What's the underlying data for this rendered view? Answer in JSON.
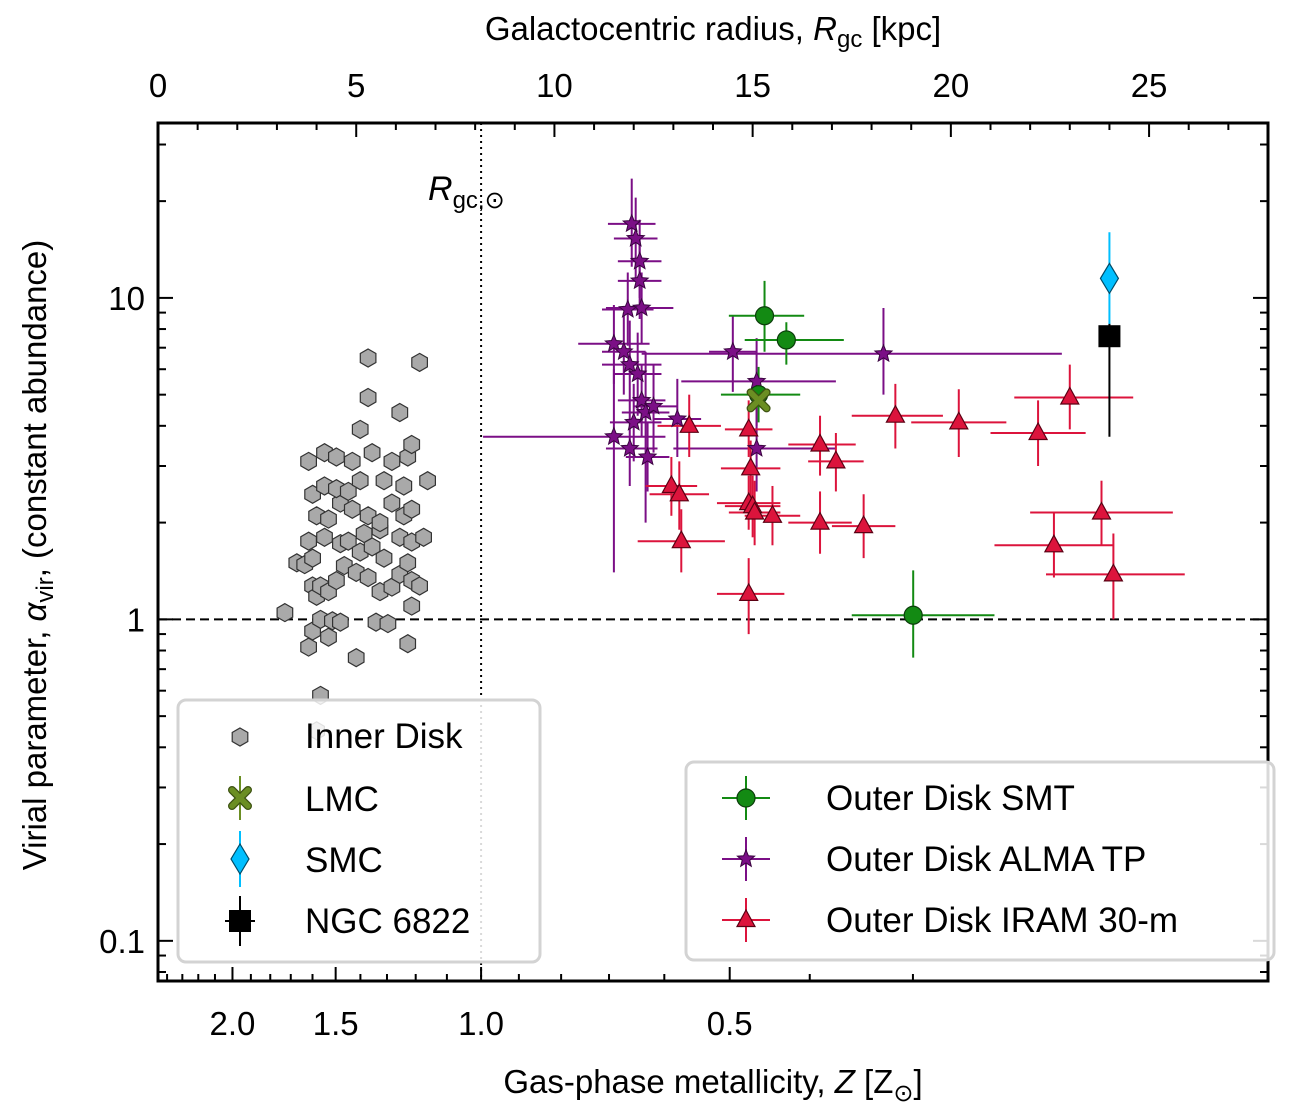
{
  "chart_data": {
    "type": "scatter",
    "xlabel_bottom": "Gas-phase metallicity, ",
    "xlabel_bottom_var": "Z",
    "xlabel_bottom_unit_open": " [Z",
    "xlabel_bottom_unit_sub": "⊙",
    "xlabel_bottom_unit_close": "]",
    "xlabel_top": "Galactocentric radius, ",
    "xlabel_top_var": "R",
    "xlabel_top_sub": "gc",
    "xlabel_top_unit": " [kpc]",
    "ylabel": "Virial parameter, ",
    "ylabel_var": "α",
    "ylabel_sub": "vir",
    "ylabel_tail": ", (constant abundance)",
    "annotation_var": "R",
    "annotation_sub": "gc,⊙",
    "x_top_range_kpc": [
      0,
      28
    ],
    "x_top_ticks": [
      "0",
      "5",
      "10",
      "15",
      "20",
      "25"
    ],
    "x_bottom_ticks": [
      "2.0",
      "1.5",
      "1.0",
      "0.5"
    ],
    "y_scale": "log",
    "y_range": [
      0.075,
      35
    ],
    "y_ticks": [
      "0.1",
      "1",
      "10"
    ],
    "solar_radius_kpc": 8.15,
    "reference_line_y": 1,
    "colors": {
      "inner": "#a9a9a9",
      "lmc": "#6b8e23",
      "smc": "#00bfff",
      "ngc": "#000000",
      "smt": "#138a13",
      "alma": "#7b0f86",
      "iram": "#dc143c"
    },
    "legend_left": [
      {
        "key": "inner",
        "label": "Inner Disk",
        "marker": "hexagon"
      },
      {
        "key": "lmc",
        "label": "LMC",
        "marker": "x"
      },
      {
        "key": "smc",
        "label": "SMC",
        "marker": "diamond"
      },
      {
        "key": "ngc",
        "label": "NGC 6822",
        "marker": "square"
      }
    ],
    "legend_right": [
      {
        "key": "smt",
        "label": "Outer Disk SMT",
        "marker": "circle"
      },
      {
        "key": "alma",
        "label": "Outer Disk ALMA TP",
        "marker": "star"
      },
      {
        "key": "iram",
        "label": "Outer Disk IRAM 30-m",
        "marker": "triangle"
      }
    ],
    "inner_disk": [
      [
        3.2,
        1.05
      ],
      [
        3.8,
        0.82
      ],
      [
        3.9,
        0.92
      ],
      [
        4.1,
        1.0
      ],
      [
        4.3,
        0.88
      ],
      [
        4.4,
        0.99
      ],
      [
        4.6,
        0.98
      ],
      [
        5.0,
        0.76
      ],
      [
        5.5,
        0.98
      ],
      [
        6.3,
        0.84
      ],
      [
        3.5,
        1.5
      ],
      [
        3.7,
        1.48
      ],
      [
        3.9,
        1.27
      ],
      [
        4.0,
        1.18
      ],
      [
        4.1,
        1.27
      ],
      [
        4.3,
        1.22
      ],
      [
        4.5,
        1.32
      ],
      [
        4.7,
        1.47
      ],
      [
        5.0,
        1.4
      ],
      [
        5.3,
        1.35
      ],
      [
        5.6,
        1.22
      ],
      [
        5.9,
        1.26
      ],
      [
        6.1,
        1.38
      ],
      [
        6.4,
        1.32
      ],
      [
        6.6,
        1.27
      ],
      [
        6.4,
        1.1
      ],
      [
        6.3,
        1.5
      ],
      [
        3.9,
        1.55
      ],
      [
        3.8,
        1.75
      ],
      [
        4.2,
        1.8
      ],
      [
        4.6,
        1.72
      ],
      [
        4.8,
        1.75
      ],
      [
        5.1,
        1.62
      ],
      [
        5.4,
        1.68
      ],
      [
        5.6,
        1.9
      ],
      [
        6.1,
        1.8
      ],
      [
        6.4,
        1.74
      ],
      [
        6.7,
        1.8
      ],
      [
        4.0,
        2.1
      ],
      [
        4.3,
        2.05
      ],
      [
        4.6,
        2.3
      ],
      [
        4.9,
        2.2
      ],
      [
        5.3,
        2.1
      ],
      [
        5.6,
        2.0
      ],
      [
        5.9,
        2.3
      ],
      [
        6.2,
        2.1
      ],
      [
        6.4,
        2.2
      ],
      [
        3.9,
        2.45
      ],
      [
        4.2,
        2.6
      ],
      [
        4.5,
        2.55
      ],
      [
        4.8,
        2.5
      ],
      [
        5.1,
        2.7
      ],
      [
        5.7,
        2.7
      ],
      [
        6.2,
        2.6
      ],
      [
        6.8,
        2.7
      ],
      [
        3.8,
        3.1
      ],
      [
        4.2,
        3.3
      ],
      [
        4.5,
        3.2
      ],
      [
        4.9,
        3.1
      ],
      [
        5.4,
        3.3
      ],
      [
        5.9,
        3.1
      ],
      [
        6.3,
        3.2
      ],
      [
        6.4,
        3.5
      ],
      [
        5.1,
        3.9
      ],
      [
        5.3,
        4.9
      ],
      [
        6.1,
        4.4
      ],
      [
        5.3,
        6.5
      ],
      [
        6.6,
        6.3
      ],
      [
        5.8,
        0.97
      ],
      [
        5.7,
        1.55
      ],
      [
        5.2,
        1.85
      ],
      [
        4.1,
        0.58
      ],
      [
        4.0,
        0.45
      ]
    ],
    "lmc": [
      {
        "kpc": 15.15,
        "y": 4.8
      }
    ],
    "smc": [
      {
        "kpc": 24.0,
        "y": 11.5,
        "err_y": [
          8.2,
          16.0
        ]
      }
    ],
    "ngc6822": [
      {
        "kpc": 24.0,
        "y": 7.6,
        "err_y": [
          3.7,
          8.3
        ]
      }
    ],
    "smt": [
      {
        "kpc": 15.3,
        "y": 8.8,
        "err_x": [
          14.4,
          16.3
        ],
        "err_y": [
          6.8,
          11.3
        ]
      },
      {
        "kpc": 15.85,
        "y": 7.4,
        "err_x": [
          14.8,
          17.3
        ],
        "err_y": [
          6.2,
          8.4
        ]
      },
      {
        "kpc": 15.15,
        "y": 5.0,
        "err_x": [
          14.2,
          16.2
        ],
        "err_y": [
          4.1,
          6.1
        ]
      },
      {
        "kpc": 19.05,
        "y": 1.03,
        "err_x": [
          17.5,
          21.1
        ],
        "err_y": [
          0.76,
          1.42
        ]
      }
    ],
    "alma": [
      {
        "kpc": 11.95,
        "y": 17.0,
        "err_x": [
          11.35,
          12.55
        ],
        "err_y": [
          12.5,
          23.5
        ]
      },
      {
        "kpc": 12.05,
        "y": 15.3,
        "err_x": [
          11.5,
          12.6
        ],
        "err_y": [
          11.5,
          20.5
        ]
      },
      {
        "kpc": 12.15,
        "y": 13.0,
        "err_x": [
          11.6,
          12.7
        ],
        "err_y": [
          10.0,
          17.5
        ]
      },
      {
        "kpc": 12.15,
        "y": 11.3,
        "err_x": [
          11.6,
          12.7
        ],
        "err_y": [
          8.6,
          15.0
        ]
      },
      {
        "kpc": 12.2,
        "y": 9.3,
        "err_x": [
          11.3,
          13.0
        ],
        "err_y": [
          7.2,
          12.0
        ]
      },
      {
        "kpc": 11.85,
        "y": 9.2,
        "err_x": [
          11.2,
          12.5
        ],
        "err_y": [
          7.1,
          12.0
        ]
      },
      {
        "kpc": 11.5,
        "y": 7.2,
        "err_x": [
          10.6,
          12.4
        ],
        "err_y": [
          5.4,
          9.5
        ]
      },
      {
        "kpc": 11.75,
        "y": 6.8,
        "err_x": [
          11.2,
          12.3
        ],
        "err_y": [
          5.0,
          9.0
        ]
      },
      {
        "kpc": 11.9,
        "y": 6.2,
        "err_x": [
          11.2,
          12.7
        ],
        "err_y": [
          4.4,
          8.5
        ]
      },
      {
        "kpc": 12.1,
        "y": 5.8,
        "err_x": [
          11.5,
          12.7
        ],
        "err_y": [
          4.3,
          7.8
        ]
      },
      {
        "kpc": 11.5,
        "y": 3.7,
        "err_x": [
          8.2,
          12.8
        ],
        "err_y": [
          1.4,
          6.0
        ]
      },
      {
        "kpc": 11.9,
        "y": 3.4,
        "err_x": [
          11.3,
          12.6
        ],
        "err_y": [
          2.6,
          4.4
        ]
      },
      {
        "kpc": 12.2,
        "y": 4.8,
        "err_x": [
          11.6,
          12.8
        ],
        "err_y": [
          3.7,
          6.2
        ]
      },
      {
        "kpc": 12.0,
        "y": 4.1,
        "err_x": [
          11.4,
          12.7
        ],
        "err_y": [
          3.1,
          5.4
        ]
      },
      {
        "kpc": 12.3,
        "y": 4.4,
        "err_x": [
          11.7,
          12.9
        ],
        "err_y": [
          2.0,
          6.8
        ]
      },
      {
        "kpc": 12.5,
        "y": 4.6,
        "err_x": [
          12.0,
          13.1
        ],
        "err_y": [
          3.3,
          6.2
        ]
      },
      {
        "kpc": 12.35,
        "y": 3.2,
        "err_x": [
          11.8,
          12.9
        ],
        "err_y": [
          2.5,
          4.1
        ]
      },
      {
        "kpc": 13.1,
        "y": 4.2,
        "err_x": [
          12.5,
          13.7
        ],
        "err_y": [
          3.2,
          5.6
        ]
      },
      {
        "kpc": 14.5,
        "y": 6.8,
        "err_x": [
          13.9,
          15.1
        ],
        "err_y": [
          5.1,
          8.8
        ]
      },
      {
        "kpc": 15.1,
        "y": 5.5,
        "err_x": [
          13.2,
          17.1
        ],
        "err_y": [
          4.0,
          7.5
        ]
      },
      {
        "kpc": 15.1,
        "y": 3.4,
        "err_x": [
          13.0,
          17.1
        ],
        "err_y": [
          2.5,
          4.6
        ]
      },
      {
        "kpc": 18.3,
        "y": 6.7,
        "err_x": [
          12.2,
          22.8
        ],
        "err_y": [
          5.0,
          9.3
        ]
      }
    ],
    "iram": [
      {
        "kpc": 13.4,
        "y": 4.0,
        "err_x": [
          12.6,
          14.2
        ],
        "err_y": [
          3.2,
          5.0
        ]
      },
      {
        "kpc": 12.95,
        "y": 2.6,
        "err_x": [
          12.3,
          13.6
        ],
        "err_y": [
          2.1,
          3.2
        ]
      },
      {
        "kpc": 13.15,
        "y": 2.45,
        "err_x": [
          12.4,
          13.9
        ],
        "err_y": [
          1.9,
          3.1
        ]
      },
      {
        "kpc": 13.2,
        "y": 1.75,
        "err_x": [
          12.1,
          14.3
        ],
        "err_y": [
          1.4,
          2.2
        ]
      },
      {
        "kpc": 14.9,
        "y": 3.9,
        "err_x": [
          14.3,
          15.5
        ],
        "err_y": [
          3.2,
          4.8
        ]
      },
      {
        "kpc": 14.95,
        "y": 2.95,
        "err_x": [
          14.2,
          15.7
        ],
        "err_y": [
          2.4,
          3.6
        ]
      },
      {
        "kpc": 14.9,
        "y": 2.3,
        "err_x": [
          14.1,
          15.7
        ],
        "err_y": [
          1.9,
          2.8
        ]
      },
      {
        "kpc": 15.0,
        "y": 2.25,
        "err_x": [
          14.3,
          15.7
        ],
        "err_y": [
          1.8,
          2.8
        ]
      },
      {
        "kpc": 15.05,
        "y": 2.15,
        "err_x": [
          14.4,
          15.7
        ],
        "err_y": [
          1.7,
          2.7
        ]
      },
      {
        "kpc": 15.5,
        "y": 2.1,
        "err_x": [
          14.8,
          16.2
        ],
        "err_y": [
          1.7,
          2.6
        ]
      },
      {
        "kpc": 14.9,
        "y": 1.2,
        "err_x": [
          14.1,
          15.8
        ],
        "err_y": [
          0.9,
          1.55
        ]
      },
      {
        "kpc": 16.7,
        "y": 3.5,
        "err_x": [
          15.9,
          17.6
        ],
        "err_y": [
          2.8,
          4.3
        ]
      },
      {
        "kpc": 17.1,
        "y": 3.1,
        "err_x": [
          16.4,
          17.8
        ],
        "err_y": [
          2.5,
          3.8
        ]
      },
      {
        "kpc": 16.7,
        "y": 2.0,
        "err_x": [
          15.9,
          17.5
        ],
        "err_y": [
          1.6,
          2.5
        ]
      },
      {
        "kpc": 17.8,
        "y": 1.95,
        "err_x": [
          17.0,
          18.6
        ],
        "err_y": [
          1.55,
          2.45
        ]
      },
      {
        "kpc": 18.6,
        "y": 4.3,
        "err_x": [
          17.5,
          19.8
        ],
        "err_y": [
          3.4,
          5.4
        ]
      },
      {
        "kpc": 20.2,
        "y": 4.1,
        "err_x": [
          19.0,
          21.4
        ],
        "err_y": [
          3.2,
          5.2
        ]
      },
      {
        "kpc": 22.2,
        "y": 3.8,
        "err_x": [
          21.0,
          23.4
        ],
        "err_y": [
          3.0,
          4.8
        ]
      },
      {
        "kpc": 23.0,
        "y": 4.9,
        "err_x": [
          21.6,
          24.6
        ],
        "err_y": [
          3.9,
          6.2
        ]
      },
      {
        "kpc": 22.6,
        "y": 1.7,
        "err_x": [
          21.1,
          24.1
        ],
        "err_y": [
          1.35,
          2.15
        ]
      },
      {
        "kpc": 23.8,
        "y": 2.15,
        "err_x": [
          22.0,
          25.6
        ],
        "err_y": [
          1.7,
          2.7
        ]
      },
      {
        "kpc": 24.1,
        "y": 1.38,
        "err_x": [
          22.4,
          25.9
        ],
        "err_y": [
          1.0,
          1.85
        ]
      }
    ]
  }
}
